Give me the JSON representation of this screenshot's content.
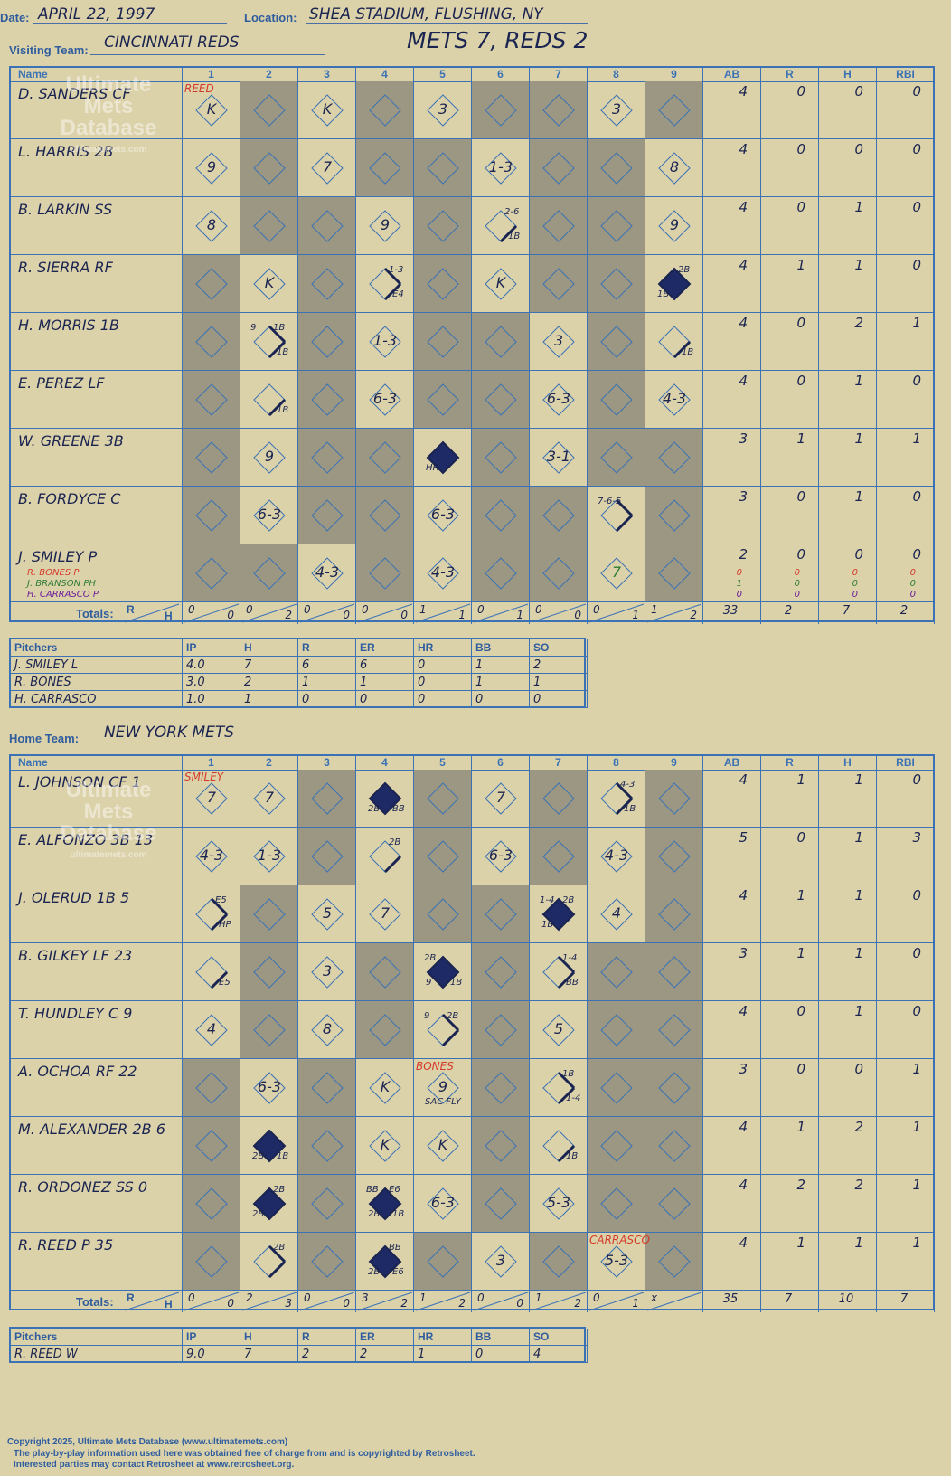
{
  "header": {
    "date_label": "Date:",
    "date": "APRIL 22, 1997",
    "location_label": "Location:",
    "location": "SHEA STADIUM, FLUSHING, NY",
    "visiting_label": "Visiting Team:",
    "visiting_team": "CINCINNATI REDS",
    "score_line": "METS 7, REDS 2",
    "home_label": "Home Team:",
    "home_team": "NEW YORK METS"
  },
  "column_headers": {
    "name": "Name",
    "innings": [
      "1",
      "2",
      "3",
      "4",
      "5",
      "6",
      "7",
      "8",
      "9"
    ],
    "stats": [
      "AB",
      "R",
      "H",
      "RBI"
    ]
  },
  "totals_label": "Totals:",
  "rh_label": {
    "r": "R",
    "h": "H"
  },
  "visitors": {
    "pitcher_change_labels": [
      {
        "text": "REED",
        "row": 0,
        "col": 0
      }
    ],
    "rows": [
      {
        "name": "D. SANDERS CF",
        "ab": "4",
        "r": "0",
        "h": "0",
        "rbi": "0"
      },
      {
        "name": "L. HARRIS 2B",
        "ab": "4",
        "r": "0",
        "h": "0",
        "rbi": "0"
      },
      {
        "name": "B. LARKIN SS",
        "ab": "4",
        "r": "0",
        "h": "1",
        "rbi": "0"
      },
      {
        "name": "R. SIERRA RF",
        "ab": "4",
        "r": "1",
        "h": "1",
        "rbi": "0"
      },
      {
        "name": "H. MORRIS 1B",
        "ab": "4",
        "r": "0",
        "h": "2",
        "rbi": "1"
      },
      {
        "name": "E. PEREZ LF",
        "ab": "4",
        "r": "0",
        "h": "1",
        "rbi": "0"
      },
      {
        "name": "W. GREENE 3B",
        "ab": "3",
        "r": "1",
        "h": "1",
        "rbi": "1"
      },
      {
        "name": "B. FORDYCE C",
        "ab": "3",
        "r": "0",
        "h": "1",
        "rbi": "0"
      },
      {
        "name": "J. SMILEY P",
        "ab": "2",
        "r": "0",
        "h": "0",
        "rbi": "0",
        "subs": [
          {
            "name": "R. BONES P",
            "color": "#d43a2a",
            "ab": "0",
            "r": "0",
            "h": "0",
            "rbi": "0"
          },
          {
            "name": "J. BRANSON PH",
            "color": "#2e7d32",
            "ab": "1",
            "r": "0",
            "h": "0",
            "rbi": "0"
          },
          {
            "name": "H. CARRASCO P",
            "color": "#6a1b9a",
            "ab": "0",
            "r": "0",
            "h": "0",
            "rbi": "0"
          }
        ]
      }
    ],
    "plays": [
      {
        "r": 0,
        "c": 0,
        "t": "K"
      },
      {
        "r": 0,
        "c": 2,
        "t": "K"
      },
      {
        "r": 0,
        "c": 4,
        "t": "3"
      },
      {
        "r": 0,
        "c": 7,
        "t": "3"
      },
      {
        "r": 1,
        "c": 0,
        "t": "9"
      },
      {
        "r": 1,
        "c": 2,
        "t": "7"
      },
      {
        "r": 1,
        "c": 5,
        "t": "1-3"
      },
      {
        "r": 1,
        "c": 8,
        "t": "8"
      },
      {
        "r": 2,
        "c": 0,
        "t": "8"
      },
      {
        "r": 2,
        "c": 3,
        "t": "9"
      },
      {
        "r": 2,
        "c": 5,
        "t": "",
        "path": 1,
        "notes": [
          {
            "t": "2-6",
            "p": "tr"
          },
          {
            "t": "1B",
            "p": "br"
          }
        ]
      },
      {
        "r": 2,
        "c": 8,
        "t": "9"
      },
      {
        "r": 3,
        "c": 1,
        "t": "K"
      },
      {
        "r": 3,
        "c": 3,
        "t": "",
        "path": 2,
        "notes": [
          {
            "t": "1-3",
            "p": "tr"
          },
          {
            "t": "E4",
            "p": "br"
          }
        ]
      },
      {
        "r": 3,
        "c": 5,
        "t": "K"
      },
      {
        "r": 3,
        "c": 8,
        "t": "",
        "path": 4,
        "notes": [
          {
            "t": "2B",
            "p": "tr"
          },
          {
            "t": "1B",
            "p": "bl"
          }
        ]
      },
      {
        "r": 4,
        "c": 1,
        "t": "",
        "path": 2,
        "notes": [
          {
            "t": "9",
            "p": "tl"
          },
          {
            "t": "1B",
            "p": "tr"
          },
          {
            "t": "1B",
            "p": "br"
          }
        ]
      },
      {
        "r": 4,
        "c": 3,
        "t": "1-3"
      },
      {
        "r": 4,
        "c": 6,
        "t": "3"
      },
      {
        "r": 4,
        "c": 8,
        "t": "",
        "path": 1,
        "notes": [
          {
            "t": "1B",
            "p": "br"
          }
        ]
      },
      {
        "r": 5,
        "c": 1,
        "t": "",
        "path": 1,
        "notes": [
          {
            "t": "1B",
            "p": "br"
          }
        ]
      },
      {
        "r": 5,
        "c": 3,
        "t": "6-3"
      },
      {
        "r": 5,
        "c": 6,
        "t": "6-3"
      },
      {
        "r": 5,
        "c": 8,
        "t": "4-3"
      },
      {
        "r": 6,
        "c": 1,
        "t": "9"
      },
      {
        "r": 6,
        "c": 4,
        "t": "",
        "path": 4,
        "notes": [
          {
            "t": "HR",
            "p": "bl"
          }
        ]
      },
      {
        "r": 6,
        "c": 6,
        "t": "3-1"
      },
      {
        "r": 7,
        "c": 1,
        "t": "6-3"
      },
      {
        "r": 7,
        "c": 4,
        "t": "6-3"
      },
      {
        "r": 7,
        "c": 7,
        "t": "",
        "path": 2,
        "notes": [
          {
            "t": "7-6-5",
            "p": "tl"
          }
        ]
      },
      {
        "r": 8,
        "c": 2,
        "t": "4-3"
      },
      {
        "r": 8,
        "c": 4,
        "t": "4-3"
      },
      {
        "r": 8,
        "c": 7,
        "t": "7",
        "color": "#2e7d32"
      }
    ],
    "active": [
      [
        1,
        0,
        1,
        0,
        1,
        0,
        0,
        1,
        0
      ],
      [
        1,
        0,
        1,
        0,
        0,
        1,
        0,
        0,
        1
      ],
      [
        1,
        0,
        0,
        1,
        0,
        1,
        0,
        0,
        1
      ],
      [
        0,
        1,
        0,
        1,
        0,
        1,
        0,
        0,
        1
      ],
      [
        0,
        1,
        0,
        1,
        0,
        0,
        1,
        0,
        1
      ],
      [
        0,
        1,
        0,
        1,
        0,
        0,
        1,
        0,
        1
      ],
      [
        0,
        1,
        0,
        0,
        1,
        0,
        1,
        0,
        0
      ],
      [
        0,
        1,
        0,
        0,
        1,
        0,
        0,
        1,
        0
      ],
      [
        0,
        0,
        1,
        0,
        1,
        0,
        0,
        1,
        0
      ]
    ],
    "inning_totals": [
      {
        "r": "0",
        "h": "0"
      },
      {
        "r": "0",
        "h": "2"
      },
      {
        "r": "0",
        "h": "0"
      },
      {
        "r": "0",
        "h": "0"
      },
      {
        "r": "1",
        "h": "1"
      },
      {
        "r": "0",
        "h": "1"
      },
      {
        "r": "0",
        "h": "0"
      },
      {
        "r": "0",
        "h": "1"
      },
      {
        "r": "1",
        "h": "2"
      }
    ],
    "totals": {
      "ab": "33",
      "r": "2",
      "h": "7",
      "rbi": "2"
    },
    "pitchers_header": [
      "Pitchers",
      "IP",
      "H",
      "R",
      "ER",
      "HR",
      "BB",
      "SO"
    ],
    "pitchers": [
      {
        "name": "J. SMILEY  L",
        "ip": "4.0",
        "h": "7",
        "r": "6",
        "er": "6",
        "hr": "0",
        "bb": "1",
        "so": "2"
      },
      {
        "name": "R. BONES",
        "ip": "3.0",
        "h": "2",
        "r": "1",
        "er": "1",
        "hr": "0",
        "bb": "1",
        "so": "1"
      },
      {
        "name": "H. CARRASCO",
        "ip": "1.0",
        "h": "1",
        "r": "0",
        "er": "0",
        "hr": "0",
        "bb": "0",
        "so": "0"
      }
    ]
  },
  "home": {
    "pitcher_change_labels": [
      {
        "text": "SMILEY",
        "row": 0,
        "col": 0
      },
      {
        "text": "BONES",
        "row": 5,
        "col": 4
      },
      {
        "text": "CARRASCO",
        "row": 8,
        "col": 7
      }
    ],
    "rows": [
      {
        "name": "L. JOHNSON CF  1",
        "ab": "4",
        "r": "1",
        "h": "1",
        "rbi": "0"
      },
      {
        "name": "E. ALFONZO 3B  13",
        "ab": "5",
        "r": "0",
        "h": "1",
        "rbi": "3"
      },
      {
        "name": "J. OLERUD 1B   5",
        "ab": "4",
        "r": "1",
        "h": "1",
        "rbi": "0"
      },
      {
        "name": "B. GILKEY LF   23",
        "ab": "3",
        "r": "1",
        "h": "1",
        "rbi": "0"
      },
      {
        "name": "T. HUNDLEY C   9",
        "ab": "4",
        "r": "0",
        "h": "1",
        "rbi": "0"
      },
      {
        "name": "A. OCHOA RF   22",
        "ab": "3",
        "r": "0",
        "h": "0",
        "rbi": "1"
      },
      {
        "name": "M. ALEXANDER 2B  6",
        "ab": "4",
        "r": "1",
        "h": "2",
        "rbi": "1"
      },
      {
        "name": "R. ORDONEZ SS   0",
        "ab": "4",
        "r": "2",
        "h": "2",
        "rbi": "1"
      },
      {
        "name": "R. REED P   35",
        "ab": "4",
        "r": "1",
        "h": "1",
        "rbi": "1"
      }
    ],
    "plays": [
      {
        "r": 0,
        "c": 0,
        "t": "7"
      },
      {
        "r": 0,
        "c": 1,
        "t": "7"
      },
      {
        "r": 0,
        "c": 3,
        "t": "",
        "path": 4,
        "notes": [
          {
            "t": "2B",
            "p": "bl"
          },
          {
            "t": "BB",
            "p": "br"
          }
        ]
      },
      {
        "r": 0,
        "c": 5,
        "t": "7"
      },
      {
        "r": 0,
        "c": 7,
        "t": "",
        "path": 2,
        "notes": [
          {
            "t": "4-3",
            "p": "tr"
          },
          {
            "t": "1B",
            "p": "br"
          }
        ]
      },
      {
        "r": 1,
        "c": 0,
        "t": "4-3"
      },
      {
        "r": 1,
        "c": 1,
        "t": "1-3"
      },
      {
        "r": 1,
        "c": 3,
        "t": "",
        "path": 1,
        "notes": [
          {
            "t": "2B",
            "p": "tr"
          }
        ]
      },
      {
        "r": 1,
        "c": 5,
        "t": "6-3"
      },
      {
        "r": 1,
        "c": 7,
        "t": "4-3"
      },
      {
        "r": 2,
        "c": 0,
        "t": "",
        "path": 2,
        "notes": [
          {
            "t": "E5",
            "p": "tr"
          },
          {
            "t": "HP",
            "p": "br"
          }
        ]
      },
      {
        "r": 2,
        "c": 2,
        "t": "5"
      },
      {
        "r": 2,
        "c": 3,
        "t": "7"
      },
      {
        "r": 2,
        "c": 6,
        "t": "",
        "path": 4,
        "notes": [
          {
            "t": "1-4",
            "p": "tl"
          },
          {
            "t": "2B",
            "p": "tr"
          },
          {
            "t": "1B",
            "p": "bl"
          }
        ]
      },
      {
        "r": 2,
        "c": 7,
        "t": "4"
      },
      {
        "r": 3,
        "c": 0,
        "t": "",
        "path": 1,
        "notes": [
          {
            "t": "E5",
            "p": "br"
          }
        ]
      },
      {
        "r": 3,
        "c": 2,
        "t": "3"
      },
      {
        "r": 3,
        "c": 4,
        "t": "",
        "path": 4,
        "notes": [
          {
            "t": "2B",
            "p": "tl"
          },
          {
            "t": "9",
            "p": "bl"
          },
          {
            "t": "1B",
            "p": "br"
          }
        ]
      },
      {
        "r": 3,
        "c": 6,
        "t": "",
        "path": 2,
        "notes": [
          {
            "t": "1-4",
            "p": "tr"
          },
          {
            "t": "BB",
            "p": "br"
          }
        ]
      },
      {
        "r": 4,
        "c": 0,
        "t": "4"
      },
      {
        "r": 4,
        "c": 2,
        "t": "8"
      },
      {
        "r": 4,
        "c": 4,
        "t": "",
        "path": 2,
        "notes": [
          {
            "t": "9",
            "p": "tl"
          },
          {
            "t": "2B",
            "p": "tr"
          }
        ]
      },
      {
        "r": 4,
        "c": 6,
        "t": "5"
      },
      {
        "r": 5,
        "c": 1,
        "t": "6-3"
      },
      {
        "r": 5,
        "c": 3,
        "t": "K"
      },
      {
        "r": 5,
        "c": 4,
        "t": "9",
        "notes": [
          {
            "t": "SAC FLY",
            "p": "b"
          }
        ]
      },
      {
        "r": 5,
        "c": 6,
        "t": "",
        "path": 2,
        "notes": [
          {
            "t": "1B",
            "p": "tr"
          },
          {
            "t": "1-4",
            "p": "br"
          }
        ]
      },
      {
        "r": 6,
        "c": 1,
        "t": "",
        "path": 4,
        "notes": [
          {
            "t": "2B",
            "p": "bl"
          },
          {
            "t": "1B",
            "p": "br"
          }
        ]
      },
      {
        "r": 6,
        "c": 3,
        "t": "K"
      },
      {
        "r": 6,
        "c": 4,
        "t": "K"
      },
      {
        "r": 6,
        "c": 6,
        "t": "",
        "path": 1,
        "notes": [
          {
            "t": "1B",
            "p": "br"
          }
        ]
      },
      {
        "r": 7,
        "c": 1,
        "t": "",
        "path": 4,
        "notes": [
          {
            "t": "2B",
            "p": "tr"
          },
          {
            "t": "2B",
            "p": "bl"
          }
        ]
      },
      {
        "r": 7,
        "c": 3,
        "t": "",
        "path": 4,
        "notes": [
          {
            "t": "BB",
            "p": "tl"
          },
          {
            "t": "E6",
            "p": "tr"
          },
          {
            "t": "2B",
            "p": "bl"
          },
          {
            "t": "1B",
            "p": "br"
          }
        ]
      },
      {
        "r": 7,
        "c": 4,
        "t": "6-3"
      },
      {
        "r": 7,
        "c": 6,
        "t": "5-3"
      },
      {
        "r": 8,
        "c": 1,
        "t": "",
        "path": 2,
        "notes": [
          {
            "t": "2B",
            "p": "tr"
          }
        ]
      },
      {
        "r": 8,
        "c": 3,
        "t": "",
        "path": 4,
        "notes": [
          {
            "t": "BB",
            "p": "tr"
          },
          {
            "t": "2B",
            "p": "bl"
          },
          {
            "t": "E6",
            "p": "br"
          }
        ]
      },
      {
        "r": 8,
        "c": 5,
        "t": "3"
      },
      {
        "r": 8,
        "c": 7,
        "t": "5-3"
      }
    ],
    "active": [
      [
        1,
        1,
        0,
        1,
        0,
        1,
        0,
        1,
        0
      ],
      [
        1,
        1,
        0,
        1,
        0,
        1,
        0,
        1,
        0
      ],
      [
        1,
        0,
        1,
        1,
        0,
        0,
        1,
        1,
        0
      ],
      [
        1,
        0,
        1,
        0,
        1,
        0,
        1,
        0,
        0
      ],
      [
        1,
        0,
        1,
        0,
        1,
        0,
        1,
        0,
        0
      ],
      [
        0,
        1,
        0,
        1,
        1,
        0,
        1,
        0,
        0
      ],
      [
        0,
        1,
        0,
        1,
        1,
        0,
        1,
        0,
        0
      ],
      [
        0,
        1,
        0,
        1,
        1,
        0,
        1,
        0,
        0
      ],
      [
        0,
        1,
        0,
        1,
        0,
        1,
        0,
        1,
        0
      ]
    ],
    "inning_totals": [
      {
        "r": "0",
        "h": "0"
      },
      {
        "r": "2",
        "h": "3"
      },
      {
        "r": "0",
        "h": "0"
      },
      {
        "r": "3",
        "h": "2"
      },
      {
        "r": "1",
        "h": "2"
      },
      {
        "r": "0",
        "h": "0"
      },
      {
        "r": "1",
        "h": "2"
      },
      {
        "r": "0",
        "h": "1"
      },
      {
        "r": "x",
        "h": ""
      }
    ],
    "totals": {
      "ab": "35",
      "r": "7",
      "h": "10",
      "rbi": "7"
    },
    "pitchers_header": [
      "Pitchers",
      "IP",
      "H",
      "R",
      "ER",
      "HR",
      "BB",
      "SO"
    ],
    "pitchers": [
      {
        "name": "R. REED  W",
        "ip": "9.0",
        "h": "7",
        "r": "2",
        "er": "2",
        "hr": "1",
        "bb": "0",
        "so": "4"
      }
    ]
  },
  "watermark": {
    "line1": "Ultimate",
    "line2": "Mets",
    "line3": "Database",
    "url": "ultimatemets.com"
  },
  "footer": {
    "copyright": "Copyright 2025, Ultimate Mets Database (www.ultimatemets.com)",
    "line2": "The play-by-play information used here was obtained free of charge from and is copyrighted by Retrosheet.",
    "line3": "Interested parties may contact Retrosheet at www.retrosheet.org."
  }
}
